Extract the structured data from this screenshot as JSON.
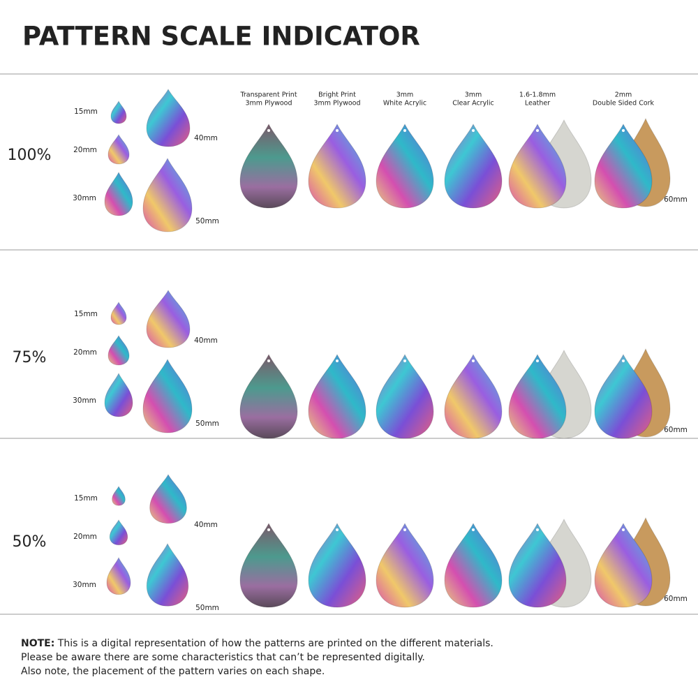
{
  "title": "PATTERN SCALE INDICATOR",
  "materials": [
    [
      "Transparent Print",
      "3mm Plywood"
    ],
    [
      "Bright Print",
      "3mm Plywood"
    ],
    [
      "3mm",
      "White Acrylic"
    ],
    [
      "3mm",
      "Clear Acrylic"
    ],
    [
      "1.6-1.8mm",
      "Leather"
    ],
    [
      "2mm",
      "Double Sided Cork"
    ]
  ],
  "rows": [
    {
      "scale": "100%",
      "sizes": [
        "15mm",
        "20mm",
        "30mm",
        "40mm",
        "50mm"
      ],
      "large_size": "60mm"
    },
    {
      "scale": "75%",
      "sizes": [
        "15mm",
        "20mm",
        "30mm",
        "40mm",
        "50mm"
      ],
      "large_size": "60mm"
    },
    {
      "scale": "50%",
      "sizes": [
        "15mm",
        "20mm",
        "30mm",
        "40mm",
        "50mm"
      ],
      "large_size": "60mm"
    }
  ],
  "note": {
    "label": "NOTE:",
    "lines": [
      "This is a digital representation of how the patterns are printed on the different materials.",
      "Please be aware there are some characteristics that can’t be represented digitally.",
      "Also note, the placement of the pattern varies on each shape."
    ]
  }
}
